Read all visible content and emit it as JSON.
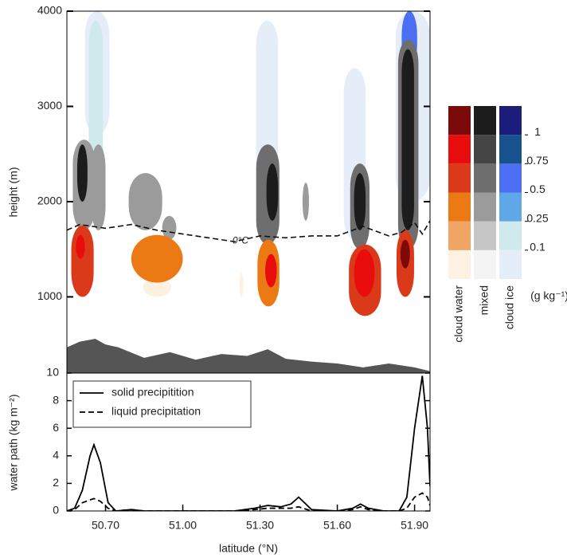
{
  "chart_data": [
    {
      "type": "contour",
      "ylabel": "height (m)",
      "ylim": [
        200,
        4000
      ],
      "yticks": [
        1000,
        2000,
        3000,
        4000
      ],
      "xlim": [
        50.55,
        51.96
      ],
      "cells": [
        {
          "kind": "cloud ice",
          "value": 0.05,
          "x": [
            50.62,
            50.715
          ],
          "y": [
            2700,
            4000
          ]
        },
        {
          "kind": "cloud ice",
          "value": 0.2,
          "x": [
            50.635,
            50.69
          ],
          "y": [
            2300,
            3900
          ]
        },
        {
          "kind": "mixed",
          "value": 0.3,
          "x": [
            50.573,
            50.66
          ],
          "y": [
            1700,
            2650
          ]
        },
        {
          "kind": "mixed",
          "value": 0.4,
          "x": [
            50.645,
            50.7
          ],
          "y": [
            1700,
            2600
          ]
        },
        {
          "kind": "mixed",
          "value": 1.2,
          "x": [
            50.59,
            50.63
          ],
          "y": [
            2000,
            2600
          ]
        },
        {
          "kind": "cloud water",
          "value": 0.6,
          "x": [
            50.567,
            50.654
          ],
          "y": [
            1000,
            1750
          ]
        },
        {
          "kind": "cloud water",
          "value": 0.9,
          "x": [
            50.585,
            50.62
          ],
          "y": [
            1400,
            1650
          ]
        },
        {
          "kind": "mixed",
          "value": 0.4,
          "x": [
            50.79,
            50.92
          ],
          "y": [
            1700,
            2300
          ]
        },
        {
          "kind": "mixed",
          "value": 0.3,
          "x": [
            50.92,
            50.975
          ],
          "y": [
            1600,
            1850
          ]
        },
        {
          "kind": "cloud water",
          "value": 0.05,
          "x": [
            50.845,
            50.955
          ],
          "y": [
            1000,
            1200
          ]
        },
        {
          "kind": "cloud water",
          "value": 0.3,
          "x": [
            50.8,
            51.0
          ],
          "y": [
            1150,
            1650
          ]
        },
        {
          "kind": "cloud ice",
          "value": 0.05,
          "x": [
            51.285,
            51.37
          ],
          "y": [
            2200,
            3900
          ]
        },
        {
          "kind": "mixed",
          "value": 0.5,
          "x": [
            51.285,
            51.375
          ],
          "y": [
            1550,
            2600
          ]
        },
        {
          "kind": "mixed",
          "value": 1.1,
          "x": [
            51.325,
            51.37
          ],
          "y": [
            1800,
            2400
          ]
        },
        {
          "kind": "cloud water",
          "value": 0.4,
          "x": [
            51.29,
            51.375
          ],
          "y": [
            900,
            1600
          ]
        },
        {
          "kind": "cloud water",
          "value": 0.8,
          "x": [
            51.32,
            51.365
          ],
          "y": [
            1100,
            1450
          ]
        },
        {
          "kind": "mixed",
          "value": 0.3,
          "x": [
            51.465,
            51.49
          ],
          "y": [
            1800,
            2200
          ]
        },
        {
          "kind": "cloud water",
          "value": 0.05,
          "x": [
            51.22,
            51.235
          ],
          "y": [
            1000,
            1250
          ]
        },
        {
          "kind": "cloud ice",
          "value": 0.05,
          "x": [
            51.625,
            51.71
          ],
          "y": [
            1600,
            3400
          ]
        },
        {
          "kind": "mixed",
          "value": 0.6,
          "x": [
            51.65,
            51.725
          ],
          "y": [
            1500,
            2400
          ]
        },
        {
          "kind": "mixed",
          "value": 1.1,
          "x": [
            51.665,
            51.71
          ],
          "y": [
            1700,
            2300
          ]
        },
        {
          "kind": "cloud water",
          "value": 0.5,
          "x": [
            51.645,
            51.77
          ],
          "y": [
            800,
            1550
          ]
        },
        {
          "kind": "cloud water",
          "value": 0.9,
          "x": [
            51.665,
            51.745
          ],
          "y": [
            1000,
            1500
          ]
        },
        {
          "kind": "cloud ice",
          "value": 0.05,
          "x": [
            51.827,
            51.96
          ],
          "y": [
            2000,
            4000
          ]
        },
        {
          "kind": "cloud ice",
          "value": 0.6,
          "x": [
            51.85,
            51.91
          ],
          "y": [
            3400,
            4000
          ]
        },
        {
          "kind": "mixed",
          "value": 0.5,
          "x": [
            51.836,
            51.915
          ],
          "y": [
            1500,
            3700
          ]
        },
        {
          "kind": "mixed",
          "value": 1.2,
          "x": [
            51.85,
            51.898
          ],
          "y": [
            1700,
            3600
          ]
        },
        {
          "kind": "cloud water",
          "value": 0.5,
          "x": [
            51.83,
            51.898
          ],
          "y": [
            1000,
            1700
          ]
        },
        {
          "kind": "cloud water",
          "value": 1.05,
          "x": [
            51.845,
            51.882
          ],
          "y": [
            1300,
            1600
          ]
        }
      ],
      "freezing_level": {
        "x": [
          50.55,
          50.6,
          50.7,
          50.8,
          50.9,
          51.0,
          51.1,
          51.2,
          51.3,
          51.4,
          51.5,
          51.6,
          51.7,
          51.8,
          51.85,
          51.9,
          51.93,
          51.96
        ],
        "y": [
          1700,
          1760,
          1720,
          1760,
          1700,
          1660,
          1620,
          1580,
          1640,
          1620,
          1640,
          1640,
          1740,
          1640,
          1680,
          1780,
          1660,
          1800
        ]
      },
      "annotation": "0°C",
      "terrain": {
        "color": "#555555",
        "x": [
          50.55,
          50.6,
          50.66,
          50.7,
          50.75,
          50.85,
          50.95,
          51.05,
          51.15,
          51.25,
          51.33,
          51.4,
          51.5,
          51.6,
          51.7,
          51.8,
          51.9,
          51.96
        ],
        "y": [
          470,
          530,
          560,
          500,
          470,
          360,
          420,
          340,
          400,
          380,
          450,
          350,
          320,
          300,
          260,
          300,
          260,
          220
        ]
      },
      "colorbar": {
        "levels": [
          0.1,
          0.25,
          0.5,
          0.75,
          1
        ],
        "unit": "(g kg⁻¹)",
        "columns": [
          {
            "name": "cloud water",
            "colors": [
              "#fdf1e2",
              "#f0a565",
              "#ec7a14",
              "#db3a1a",
              "#e80c0c",
              "#7d0a0a"
            ]
          },
          {
            "name": "mixed",
            "colors": [
              "#f4f4f4",
              "#c6c6c6",
              "#9b9b9b",
              "#6e6e6e",
              "#454545",
              "#1c1c1c"
            ]
          },
          {
            "name": "cloud ice",
            "colors": [
              "#e5edf8",
              "#cfe9ec",
              "#5ea8e8",
              "#4c6ef2",
              "#17528f",
              "#1c1c7a"
            ]
          }
        ]
      }
    },
    {
      "type": "line",
      "xlabel": "latitude (°N)",
      "ylabel": "water path (kg m⁻²)",
      "xlim": [
        50.55,
        51.96
      ],
      "xticks": [
        {
          "value": 50.7,
          "label": "50.70"
        },
        {
          "value": 51.0,
          "label": "51.00"
        },
        {
          "value": 51.3,
          "label": "51.30"
        },
        {
          "value": 51.6,
          "label": "51.60"
        },
        {
          "value": 51.9,
          "label": "51.90"
        }
      ],
      "ylim": [
        0,
        10
      ],
      "yticks": [
        0,
        2,
        4,
        6,
        8,
        10
      ],
      "x": [
        50.55,
        50.58,
        50.61,
        50.64,
        50.655,
        50.68,
        50.71,
        50.74,
        50.8,
        50.85,
        51.2,
        51.28,
        51.33,
        51.38,
        51.42,
        51.45,
        51.5,
        51.6,
        51.66,
        51.69,
        51.72,
        51.78,
        51.84,
        51.87,
        51.9,
        51.93,
        51.95,
        51.96
      ],
      "series": [
        {
          "name": "solid precipitition",
          "color": "#000000",
          "dash": "solid",
          "values": [
            0,
            0.2,
            1.5,
            4.0,
            4.8,
            3.5,
            0.6,
            0,
            0.1,
            0,
            0,
            0.2,
            0.4,
            0.3,
            0.5,
            1.0,
            0.1,
            0,
            0.2,
            0.5,
            0.2,
            0,
            0,
            1.0,
            6.0,
            9.8,
            6.0,
            1.8
          ]
        },
        {
          "name": "liquid precipitation",
          "color": "#000000",
          "dash": "dashed",
          "values": [
            0,
            0.1,
            0.6,
            0.8,
            0.9,
            0.7,
            0.2,
            0,
            0.1,
            0,
            0,
            0.1,
            0.2,
            0.2,
            0.2,
            0.3,
            0,
            0,
            0.1,
            0.3,
            0.1,
            0,
            0,
            0.2,
            1.0,
            1.3,
            1.0,
            0.4
          ]
        }
      ]
    }
  ]
}
